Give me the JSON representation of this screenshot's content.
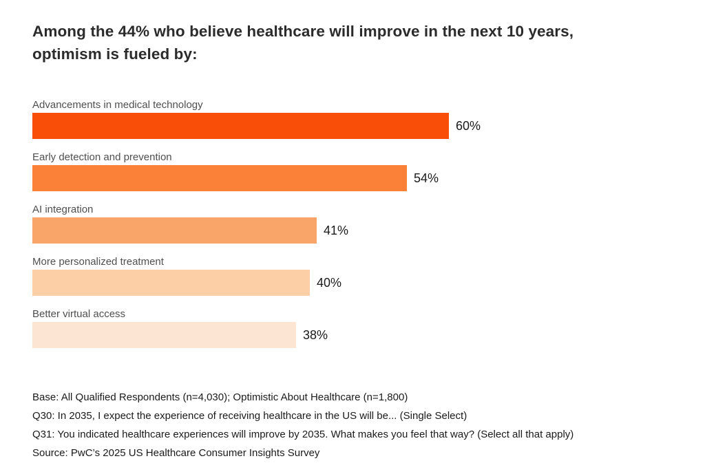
{
  "title": "Among the 44% who believe healthcare will improve in the next 10 years, optimism is fueled by:",
  "chart_data": {
    "type": "bar",
    "orientation": "horizontal",
    "title": "Among the 44% who believe healthcare will improve in the next 10 years, optimism is fueled by:",
    "categories": [
      "Advancements in medical technology",
      "Early detection and prevention",
      "AI integration",
      "More personalized treatment",
      "Better virtual access"
    ],
    "values": [
      60,
      54,
      41,
      40,
      38
    ],
    "value_labels": [
      "60%",
      "54%",
      "41%",
      "40%",
      "38%"
    ],
    "bar_colors": [
      "#f94e07",
      "#fc8138",
      "#f9a468",
      "#fccfa6",
      "#fde5d3"
    ],
    "xlabel": "",
    "ylabel": "",
    "xlim": [
      0,
      100
    ],
    "grid": false,
    "legend": false,
    "data_labels_position": "right-of-bar"
  },
  "footnotes": {
    "base": "Base: All Qualified Respondents (n=4,030); Optimistic About Healthcare (n=1,800)",
    "q30": "Q30: In 2035, I expect the experience of receiving healthcare in the US will be... (Single Select)",
    "q31": "Q31: You indicated healthcare experiences will improve by 2035. What makes you feel that way? (Select all that apply)",
    "source": "Source: PwC’s 2025 US Healthcare Consumer Insights Survey"
  },
  "colors": {
    "background": "#ffffff",
    "title_text": "#2b2b2b",
    "category_text": "#4f4f4f",
    "value_text": "#1a1a1a",
    "footnote_text": "#1a1a1a"
  }
}
